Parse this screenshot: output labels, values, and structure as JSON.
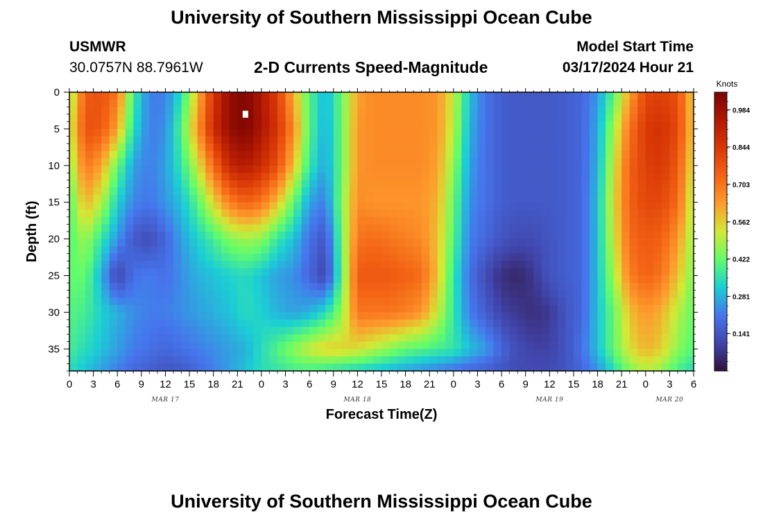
{
  "header": {
    "title": "University of Southern Mississippi Ocean Cube",
    "station": "USMWR",
    "coordinates": "30.0757N  88.7961W",
    "chart_title": "2-D Currents Speed-Magnitude",
    "model_label": "Model Start Time",
    "model_time": "03/17/2024 Hour 21"
  },
  "footer": {
    "title": "University of Southern Mississippi Ocean Cube"
  },
  "colors": {
    "ramp": [
      "#30123b",
      "#4145ab",
      "#4675ed",
      "#1bcfd4",
      "#62fc6b",
      "#d2e935",
      "#fe9b2d",
      "#f36315",
      "#d93806",
      "#b11901",
      "#7a0403"
    ]
  },
  "chart_data": {
    "type": "heatmap",
    "title": "2-D Currents Speed-Magnitude",
    "xlabel": "Forecast Time(Z)",
    "ylabel": "Depth (ft)",
    "x_hours_range": [
      0,
      78
    ],
    "ylim": [
      0,
      38
    ],
    "x_tick_labels": [
      "0",
      "3",
      "6",
      "9",
      "12",
      "15",
      "18",
      "21",
      "0",
      "3",
      "6",
      "9",
      "12",
      "15",
      "18",
      "21",
      "0",
      "3",
      "6",
      "9",
      "12",
      "15",
      "18",
      "21",
      "0",
      "3",
      "6"
    ],
    "y_tick_labels": [
      "0",
      "5",
      "10",
      "15",
      "20",
      "25",
      "30",
      "35"
    ],
    "date_labels": [
      {
        "label": "MAR 17",
        "hour": 12
      },
      {
        "label": "MAR 18",
        "hour": 36
      },
      {
        "label": "MAR 19",
        "hour": 60
      },
      {
        "label": "MAR 20",
        "hour": 75
      }
    ],
    "colorbar": {
      "unit": "Knots",
      "ticks": [
        "0.141",
        "0.281",
        "0.422",
        "0.562",
        "0.703",
        "0.844",
        "0.984"
      ],
      "range": [
        0.0,
        1.05
      ]
    },
    "marker": {
      "hour": 22,
      "depth": 3
    },
    "x_hours": [
      0,
      2,
      4,
      6,
      8,
      10,
      12,
      14,
      16,
      18,
      20,
      22,
      24,
      26,
      28,
      30,
      32,
      34,
      36,
      38,
      40,
      42,
      44,
      46,
      48,
      50,
      52,
      54,
      56,
      58,
      60,
      62,
      64,
      66,
      68,
      70,
      72,
      74,
      76,
      78
    ],
    "depths": [
      0,
      5,
      10,
      15,
      20,
      25,
      30,
      35,
      38
    ],
    "speed_knots": [
      [
        0.46,
        0.75,
        0.78,
        0.7,
        0.38,
        0.22,
        0.22,
        0.34,
        0.58,
        0.85,
        1.0,
        1.04,
        0.95,
        0.82,
        0.6,
        0.4,
        0.28,
        0.42,
        0.62,
        0.66,
        0.66,
        0.66,
        0.66,
        0.64,
        0.52,
        0.3,
        0.2,
        0.16,
        0.15,
        0.15,
        0.15,
        0.16,
        0.18,
        0.25,
        0.4,
        0.62,
        0.8,
        0.82,
        0.78,
        0.55
      ],
      [
        0.5,
        0.78,
        0.76,
        0.62,
        0.34,
        0.22,
        0.24,
        0.4,
        0.64,
        0.88,
        1.0,
        1.04,
        0.96,
        0.85,
        0.66,
        0.4,
        0.27,
        0.42,
        0.64,
        0.66,
        0.66,
        0.66,
        0.66,
        0.64,
        0.5,
        0.28,
        0.2,
        0.16,
        0.15,
        0.15,
        0.15,
        0.16,
        0.18,
        0.27,
        0.48,
        0.7,
        0.84,
        0.86,
        0.8,
        0.55
      ],
      [
        0.45,
        0.7,
        0.62,
        0.42,
        0.26,
        0.22,
        0.26,
        0.36,
        0.52,
        0.72,
        0.9,
        0.94,
        0.88,
        0.78,
        0.58,
        0.36,
        0.26,
        0.42,
        0.64,
        0.66,
        0.66,
        0.66,
        0.66,
        0.62,
        0.46,
        0.26,
        0.2,
        0.16,
        0.15,
        0.15,
        0.15,
        0.16,
        0.18,
        0.28,
        0.52,
        0.74,
        0.82,
        0.84,
        0.76,
        0.52
      ],
      [
        0.4,
        0.6,
        0.5,
        0.32,
        0.23,
        0.21,
        0.25,
        0.3,
        0.4,
        0.55,
        0.68,
        0.74,
        0.7,
        0.58,
        0.42,
        0.26,
        0.22,
        0.44,
        0.66,
        0.64,
        0.64,
        0.64,
        0.64,
        0.6,
        0.42,
        0.24,
        0.2,
        0.16,
        0.15,
        0.15,
        0.15,
        0.16,
        0.18,
        0.3,
        0.54,
        0.74,
        0.8,
        0.8,
        0.72,
        0.48
      ],
      [
        0.4,
        0.48,
        0.36,
        0.25,
        0.15,
        0.12,
        0.18,
        0.26,
        0.32,
        0.38,
        0.45,
        0.48,
        0.46,
        0.36,
        0.3,
        0.2,
        0.14,
        0.42,
        0.7,
        0.72,
        0.7,
        0.68,
        0.66,
        0.58,
        0.4,
        0.22,
        0.18,
        0.14,
        0.12,
        0.12,
        0.14,
        0.16,
        0.18,
        0.3,
        0.52,
        0.72,
        0.76,
        0.74,
        0.64,
        0.46
      ],
      [
        0.42,
        0.42,
        0.28,
        0.1,
        0.2,
        0.22,
        0.2,
        0.24,
        0.28,
        0.3,
        0.32,
        0.34,
        0.3,
        0.26,
        0.24,
        0.18,
        0.1,
        0.4,
        0.76,
        0.76,
        0.76,
        0.74,
        0.72,
        0.58,
        0.36,
        0.2,
        0.12,
        0.06,
        0.04,
        0.08,
        0.14,
        0.16,
        0.18,
        0.3,
        0.48,
        0.68,
        0.74,
        0.7,
        0.58,
        0.44
      ],
      [
        0.4,
        0.38,
        0.32,
        0.28,
        0.24,
        0.22,
        0.22,
        0.24,
        0.26,
        0.28,
        0.3,
        0.34,
        0.32,
        0.28,
        0.26,
        0.28,
        0.34,
        0.46,
        0.7,
        0.7,
        0.7,
        0.68,
        0.64,
        0.52,
        0.36,
        0.22,
        0.16,
        0.1,
        0.08,
        0.06,
        0.08,
        0.14,
        0.18,
        0.3,
        0.42,
        0.58,
        0.64,
        0.6,
        0.5,
        0.42
      ],
      [
        0.38,
        0.34,
        0.3,
        0.26,
        0.22,
        0.2,
        0.18,
        0.2,
        0.22,
        0.24,
        0.26,
        0.28,
        0.34,
        0.4,
        0.46,
        0.52,
        0.56,
        0.56,
        0.54,
        0.5,
        0.46,
        0.42,
        0.4,
        0.38,
        0.36,
        0.3,
        0.26,
        0.18,
        0.12,
        0.1,
        0.1,
        0.14,
        0.2,
        0.3,
        0.42,
        0.54,
        0.6,
        0.56,
        0.46,
        0.4
      ],
      [
        0.34,
        0.3,
        0.26,
        0.22,
        0.18,
        0.16,
        0.14,
        0.15,
        0.18,
        0.22,
        0.26,
        0.3,
        0.34,
        0.36,
        0.38,
        0.38,
        0.36,
        0.34,
        0.32,
        0.3,
        0.28,
        0.26,
        0.24,
        0.22,
        0.2,
        0.18,
        0.16,
        0.14,
        0.12,
        0.12,
        0.12,
        0.14,
        0.18,
        0.24,
        0.34,
        0.44,
        0.5,
        0.46,
        0.38,
        0.34
      ]
    ]
  }
}
